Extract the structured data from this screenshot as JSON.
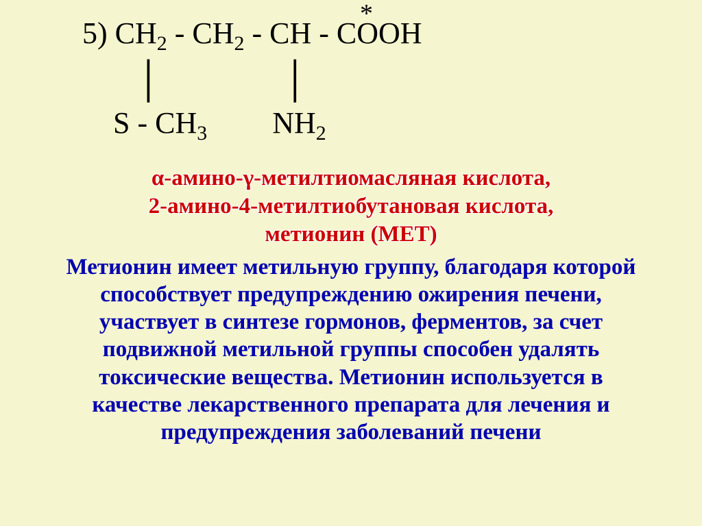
{
  "formula": {
    "item_number": "5)",
    "star": "*",
    "line1_parts": [
      "CH",
      "2",
      " - CH",
      "2",
      " - CH - COOH"
    ],
    "bar1": "│",
    "bar2": "│",
    "line3_left_parts": [
      "S - CH",
      "3"
    ],
    "line3_right_parts": [
      "NH",
      "2"
    ]
  },
  "names": {
    "line1": "α-амино-γ-метилтиомасляная кислота,",
    "line2": "2-амино-4-метилтиобутановая кислота,",
    "line3": "метионин (МЕТ)"
  },
  "description": {
    "l1": "Метионин имеет метильную группу, благодаря которой",
    "l2": "способствует предупреждению ожирения печени,",
    "l3": "участвует в синтезе гормонов, ферментов, за счет",
    "l4": "подвижной метильной группы способен удалять",
    "l5": "токсические вещества. Метионин используется в",
    "l6": "качестве лекарственного препарата для лечения и",
    "l7": "предупреждения заболеваний печени"
  },
  "colors": {
    "background": "#f5f5d0",
    "formula_text": "#000000",
    "red_text": "#cc0000",
    "blue_text": "#0000b0"
  },
  "typography": {
    "font_family": "Times New Roman",
    "formula_fontsize_pt": 33,
    "body_fontsize_pt": 25,
    "weight": "bold"
  }
}
